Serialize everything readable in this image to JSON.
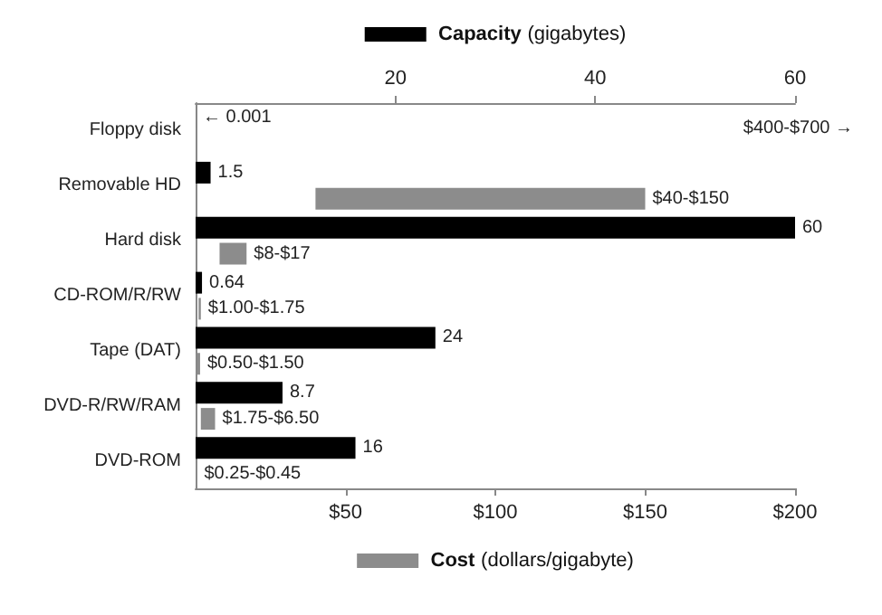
{
  "chart_data": {
    "type": "bar",
    "orientation": "horizontal",
    "categories": [
      "Floppy disk",
      "Removable HD",
      "Hard disk",
      "CD-ROM/R/RW",
      "Tape (DAT)",
      "DVD-R/RW/RAM",
      "DVD-ROM"
    ],
    "series": [
      {
        "color": "#000000",
        "axis": "x2",
        "values": [
          0.001,
          1.5,
          60,
          0.64,
          24,
          8.7,
          16
        ],
        "value_labels": [
          "← 0.001",
          "1.5",
          "60",
          "0.64",
          "24",
          "8.7",
          "16"
        ]
      },
      {
        "color": "#8c8c8c",
        "base": [
          null,
          40,
          8,
          1.0,
          0.5,
          1.75,
          0.25
        ],
        "values": [
          null,
          110,
          9,
          0.75,
          1.0,
          4.75,
          0.2
        ],
        "value_labels": [
          null,
          "$40-$150",
          "$8-$17",
          "$1.00-$1.75",
          "$0.50-$1.50",
          "$1.75-$6.50",
          "$0.25-$0.45"
        ]
      }
    ],
    "xlim": [
      0,
      200
    ],
    "xticks": [
      {
        "value": 50,
        "label": "$50"
      },
      {
        "value": 100,
        "label": "$100"
      },
      {
        "value": 150,
        "label": "$150"
      },
      {
        "value": 200,
        "label": "$200"
      }
    ],
    "x2lim": [
      0,
      60
    ],
    "x2ticks": [
      20,
      40,
      60
    ],
    "annotations": [
      "$400-$700 →"
    ],
    "xlabel": "Cost (dollars/gigabyte)",
    "x2label": "Capacity (gigabytes)",
    "grid": false
  }
}
